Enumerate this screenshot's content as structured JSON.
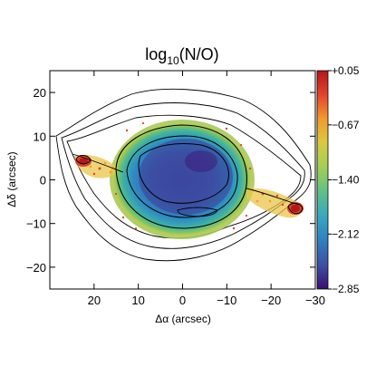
{
  "chart_data": {
    "type": "heatmap",
    "title_main": "log",
    "title_sub": "10",
    "title_tail": "(N/O)",
    "xlabel": "Δα (arcsec)",
    "ylabel": "Δδ (arcsec)",
    "xlim": [
      30,
      -30
    ],
    "ylim": [
      -25,
      25
    ],
    "x_ticks": [
      20,
      10,
      0,
      -10,
      -20,
      -30
    ],
    "x_tick_labels": [
      "20",
      "10",
      "0",
      "−10",
      "−20",
      "−30"
    ],
    "y_ticks": [
      20,
      10,
      0,
      -10,
      -20
    ],
    "y_tick_labels": [
      "20",
      "10",
      "0",
      "−10",
      "−20"
    ],
    "colorbar": {
      "min": -2.85,
      "max": 0.05,
      "ticks": [
        0.05,
        -0.67,
        -1.4,
        -2.12,
        -2.85
      ],
      "tick_labels": [
        "+0.05",
        "−0.67",
        "−1.40",
        "−2.12",
        "−2.85"
      ],
      "colormap": [
        "#3b0f70",
        "#3e4fa3",
        "#2f7fc0",
        "#37a6c0",
        "#5cc08a",
        "#a4cf55",
        "#d8c940",
        "#f29a2e",
        "#e4432a",
        "#b3161c"
      ]
    },
    "grid": false,
    "legend": "none"
  }
}
